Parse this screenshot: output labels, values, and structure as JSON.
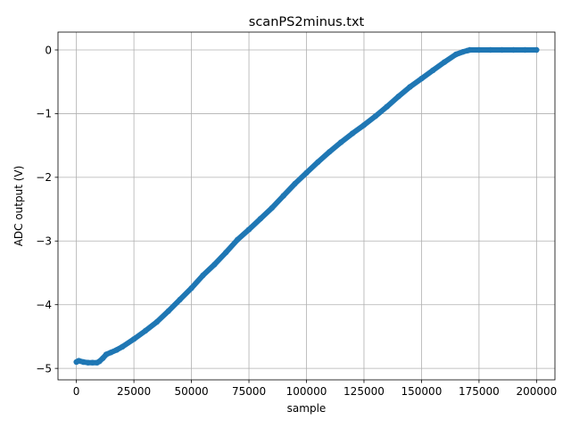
{
  "chart_data": {
    "type": "line",
    "title": "scanPS2minus.txt",
    "xlabel": "sample",
    "ylabel": "ADC output (V)",
    "xlim": [
      -8000,
      208000
    ],
    "ylim": [
      -5.18,
      0.28
    ],
    "xticks": [
      0,
      25000,
      50000,
      75000,
      100000,
      125000,
      150000,
      175000,
      200000
    ],
    "xtick_labels": [
      "0",
      "25000",
      "50000",
      "75000",
      "100000",
      "125000",
      "150000",
      "175000",
      "200000"
    ],
    "yticks": [
      0,
      -1,
      -2,
      -3,
      -4,
      -5
    ],
    "ytick_labels": [
      "0",
      "−1",
      "−2",
      "−3",
      "−4",
      "−5"
    ],
    "grid": true,
    "series": [
      {
        "color": "#1f77b4",
        "marker": "circle",
        "x": [
          0,
          1000,
          3000,
          5000,
          7000,
          9000,
          10000,
          11500,
          13000,
          15000,
          17500,
          20000,
          25000,
          30000,
          35000,
          40000,
          45000,
          50000,
          55000,
          60000,
          65000,
          70000,
          75000,
          80000,
          85000,
          90000,
          95000,
          100000,
          105000,
          110000,
          115000,
          120000,
          125000,
          130000,
          135000,
          140000,
          145000,
          150000,
          155000,
          160000,
          165000,
          168000,
          170000,
          171000,
          175000,
          180000,
          185000,
          190000,
          195000,
          200000
        ],
        "y": [
          -4.9,
          -4.88,
          -4.9,
          -4.91,
          -4.91,
          -4.91,
          -4.89,
          -4.84,
          -4.78,
          -4.75,
          -4.71,
          -4.66,
          -4.54,
          -4.41,
          -4.27,
          -4.1,
          -3.92,
          -3.74,
          -3.54,
          -3.37,
          -3.18,
          -2.98,
          -2.82,
          -2.65,
          -2.48,
          -2.29,
          -2.1,
          -1.93,
          -1.76,
          -1.6,
          -1.45,
          -1.31,
          -1.18,
          -1.04,
          -0.89,
          -0.73,
          -0.58,
          -0.45,
          -0.32,
          -0.19,
          -0.07,
          -0.03,
          -0.01,
          0.0,
          0.0,
          0.0,
          0.0,
          0.0,
          0.0,
          0.0
        ]
      }
    ]
  }
}
